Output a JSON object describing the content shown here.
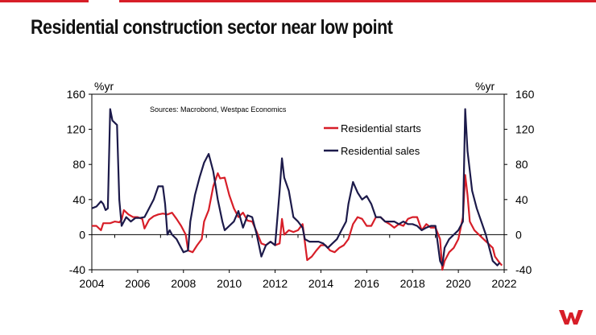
{
  "page": {
    "title": "Residential construction sector near low point"
  },
  "colors": {
    "accent": "#d71e28",
    "starts": "#d71e28",
    "sales": "#1c1a4a",
    "axis": "#000000"
  },
  "logo": {
    "name": "westpac-logo-icon"
  },
  "chart_data": {
    "type": "line",
    "title": "",
    "source": "Sources: Macrobond, Westpac Economics",
    "y_unit_left": "%yr",
    "y_unit_right": "%yr",
    "xlim": [
      2004,
      2022
    ],
    "ylim": [
      -40,
      160
    ],
    "x_ticks": [
      "2004",
      "2006",
      "2008",
      "2010",
      "2012",
      "2014",
      "2016",
      "2018",
      "2020",
      "2022"
    ],
    "y_ticks": [
      "160",
      "120",
      "80",
      "40",
      "0",
      "-40"
    ],
    "legend_position": "top-right",
    "grid": false,
    "series": [
      {
        "name": "Residential starts",
        "color": "#d71e28",
        "points": [
          [
            2004.0,
            10
          ],
          [
            2004.2,
            10
          ],
          [
            2004.4,
            5
          ],
          [
            2004.5,
            13
          ],
          [
            2004.7,
            13
          ],
          [
            2004.8,
            13
          ],
          [
            2005.0,
            15
          ],
          [
            2005.2,
            14
          ],
          [
            2005.3,
            17
          ],
          [
            2005.4,
            28
          ],
          [
            2005.6,
            23
          ],
          [
            2005.8,
            20
          ],
          [
            2006.0,
            20
          ],
          [
            2006.2,
            18
          ],
          [
            2006.3,
            7
          ],
          [
            2006.5,
            17
          ],
          [
            2006.7,
            21
          ],
          [
            2006.9,
            23
          ],
          [
            2007.1,
            24
          ],
          [
            2007.3,
            23
          ],
          [
            2007.5,
            25
          ],
          [
            2007.7,
            18
          ],
          [
            2007.9,
            10
          ],
          [
            2008.1,
            0
          ],
          [
            2008.2,
            -18
          ],
          [
            2008.4,
            -20
          ],
          [
            2008.6,
            -12
          ],
          [
            2008.8,
            -5
          ],
          [
            2008.9,
            15
          ],
          [
            2009.1,
            28
          ],
          [
            2009.3,
            55
          ],
          [
            2009.5,
            70
          ],
          [
            2009.6,
            64
          ],
          [
            2009.8,
            65
          ],
          [
            2010.0,
            45
          ],
          [
            2010.2,
            30
          ],
          [
            2010.4,
            20
          ],
          [
            2010.6,
            25
          ],
          [
            2010.8,
            16
          ],
          [
            2011.0,
            15
          ],
          [
            2011.2,
            3
          ],
          [
            2011.4,
            -10
          ],
          [
            2011.6,
            -12
          ],
          [
            2011.8,
            -8
          ],
          [
            2012.0,
            -12
          ],
          [
            2012.2,
            -10
          ],
          [
            2012.3,
            18
          ],
          [
            2012.4,
            0
          ],
          [
            2012.6,
            5
          ],
          [
            2012.8,
            3
          ],
          [
            2013.0,
            5
          ],
          [
            2013.2,
            12
          ],
          [
            2013.4,
            -29
          ],
          [
            2013.6,
            -25
          ],
          [
            2013.8,
            -18
          ],
          [
            2014.0,
            -12
          ],
          [
            2014.2,
            -12
          ],
          [
            2014.4,
            -18
          ],
          [
            2014.6,
            -20
          ],
          [
            2014.8,
            -15
          ],
          [
            2015.0,
            -12
          ],
          [
            2015.2,
            -5
          ],
          [
            2015.4,
            12
          ],
          [
            2015.6,
            20
          ],
          [
            2015.8,
            18
          ],
          [
            2016.0,
            10
          ],
          [
            2016.2,
            10
          ],
          [
            2016.4,
            20
          ],
          [
            2016.6,
            20
          ],
          [
            2016.8,
            15
          ],
          [
            2017.0,
            12
          ],
          [
            2017.2,
            8
          ],
          [
            2017.4,
            12
          ],
          [
            2017.6,
            10
          ],
          [
            2017.8,
            18
          ],
          [
            2018.0,
            20
          ],
          [
            2018.2,
            20
          ],
          [
            2018.4,
            5
          ],
          [
            2018.6,
            12
          ],
          [
            2018.8,
            8
          ],
          [
            2019.0,
            8
          ],
          [
            2019.2,
            -5
          ],
          [
            2019.3,
            -40
          ],
          [
            2019.4,
            -30
          ],
          [
            2019.6,
            -20
          ],
          [
            2019.8,
            -15
          ],
          [
            2020.0,
            -5
          ],
          [
            2020.2,
            20
          ],
          [
            2020.3,
            68
          ],
          [
            2020.4,
            45
          ],
          [
            2020.5,
            15
          ],
          [
            2020.7,
            5
          ],
          [
            2020.9,
            0
          ],
          [
            2021.1,
            -5
          ],
          [
            2021.3,
            -10
          ],
          [
            2021.5,
            -15
          ],
          [
            2021.6,
            -25
          ],
          [
            2021.8,
            -32
          ],
          [
            2021.9,
            -35
          ]
        ]
      },
      {
        "name": "Residential sales",
        "color": "#1c1a4a",
        "points": [
          [
            2004.0,
            30
          ],
          [
            2004.2,
            32
          ],
          [
            2004.4,
            38
          ],
          [
            2004.5,
            35
          ],
          [
            2004.6,
            28
          ],
          [
            2004.7,
            30
          ],
          [
            2004.8,
            143
          ],
          [
            2004.9,
            130
          ],
          [
            2005.1,
            125
          ],
          [
            2005.2,
            40
          ],
          [
            2005.3,
            10
          ],
          [
            2005.5,
            20
          ],
          [
            2005.7,
            15
          ],
          [
            2005.9,
            19
          ],
          [
            2006.1,
            19
          ],
          [
            2006.3,
            20
          ],
          [
            2006.5,
            30
          ],
          [
            2006.7,
            40
          ],
          [
            2006.9,
            55
          ],
          [
            2007.1,
            55
          ],
          [
            2007.2,
            35
          ],
          [
            2007.3,
            0
          ],
          [
            2007.4,
            5
          ],
          [
            2007.5,
            0
          ],
          [
            2007.7,
            -5
          ],
          [
            2007.9,
            -15
          ],
          [
            2008.0,
            -20
          ],
          [
            2008.2,
            -18
          ],
          [
            2008.3,
            15
          ],
          [
            2008.5,
            45
          ],
          [
            2008.7,
            65
          ],
          [
            2008.9,
            82
          ],
          [
            2009.1,
            92
          ],
          [
            2009.3,
            72
          ],
          [
            2009.5,
            40
          ],
          [
            2009.7,
            15
          ],
          [
            2009.8,
            5
          ],
          [
            2010.0,
            10
          ],
          [
            2010.2,
            15
          ],
          [
            2010.4,
            27
          ],
          [
            2010.6,
            8
          ],
          [
            2010.8,
            22
          ],
          [
            2011.0,
            20
          ],
          [
            2011.2,
            0
          ],
          [
            2011.4,
            -25
          ],
          [
            2011.6,
            -12
          ],
          [
            2011.8,
            -8
          ],
          [
            2012.0,
            -12
          ],
          [
            2012.2,
            50
          ],
          [
            2012.3,
            87
          ],
          [
            2012.4,
            65
          ],
          [
            2012.6,
            50
          ],
          [
            2012.8,
            20
          ],
          [
            2013.0,
            15
          ],
          [
            2013.2,
            8
          ],
          [
            2013.3,
            -5
          ],
          [
            2013.5,
            -8
          ],
          [
            2013.7,
            -8
          ],
          [
            2013.9,
            -8
          ],
          [
            2014.1,
            -10
          ],
          [
            2014.3,
            -15
          ],
          [
            2014.5,
            -10
          ],
          [
            2014.7,
            -5
          ],
          [
            2014.9,
            5
          ],
          [
            2015.1,
            15
          ],
          [
            2015.2,
            35
          ],
          [
            2015.4,
            60
          ],
          [
            2015.6,
            48
          ],
          [
            2015.8,
            40
          ],
          [
            2016.0,
            44
          ],
          [
            2016.2,
            35
          ],
          [
            2016.4,
            20
          ],
          [
            2016.6,
            20
          ],
          [
            2016.8,
            15
          ],
          [
            2017.0,
            15
          ],
          [
            2017.2,
            15
          ],
          [
            2017.4,
            12
          ],
          [
            2017.6,
            15
          ],
          [
            2017.8,
            12
          ],
          [
            2018.0,
            12
          ],
          [
            2018.2,
            10
          ],
          [
            2018.4,
            5
          ],
          [
            2018.6,
            8
          ],
          [
            2018.8,
            10
          ],
          [
            2019.0,
            10
          ],
          [
            2019.2,
            -30
          ],
          [
            2019.3,
            -35
          ],
          [
            2019.4,
            -15
          ],
          [
            2019.6,
            -5
          ],
          [
            2019.8,
            0
          ],
          [
            2020.0,
            5
          ],
          [
            2020.2,
            15
          ],
          [
            2020.3,
            143
          ],
          [
            2020.4,
            95
          ],
          [
            2020.6,
            50
          ],
          [
            2020.8,
            30
          ],
          [
            2021.0,
            15
          ],
          [
            2021.2,
            0
          ],
          [
            2021.4,
            -20
          ],
          [
            2021.5,
            -30
          ],
          [
            2021.7,
            -35
          ],
          [
            2021.8,
            -32
          ]
        ]
      }
    ]
  }
}
